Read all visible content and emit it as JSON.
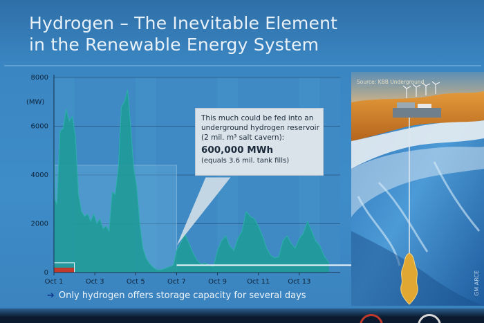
{
  "slide": {
    "title_line1": "Hydrogen – The Inevitable Element",
    "title_line2": "in the Renewable Energy System",
    "footer_text": "Only hydrogen offers storage capacity for several days",
    "footer_arrow": "➔"
  },
  "callout": {
    "line1": "This much could be fed into an",
    "line2": "underground hydrogen reservoir",
    "line3": "(2 mil. m³ salt cavern):",
    "value": "600,000 MWh",
    "note": "(equals 3.6 mil. tank fills)"
  },
  "photo": {
    "source": "Source: KBB Underground",
    "credit": "GM ARCE"
  },
  "colors": {
    "background": "#3e8cc8",
    "area_fill": "#1f9a98",
    "area_fill_light": "#2bb0aa",
    "stored_box": "#6fb4de",
    "red_bar": "#c0392b",
    "callout_bg": "#dbe3ea"
  },
  "chart_data": {
    "type": "area",
    "ylabel": "(MW)",
    "ylim": [
      0,
      8000
    ],
    "y_ticks": [
      "0",
      "2000",
      "4000",
      "6000",
      "8000"
    ],
    "y_tick_values": [
      0,
      2000,
      4000,
      6000,
      8000
    ],
    "xlim": [
      1,
      15
    ],
    "x_ticks": [
      "Oct 1",
      "Oct 3",
      "Oct 5",
      "Oct 7",
      "Oct 9",
      "Oct 11",
      "Oct 13"
    ],
    "x_tick_values": [
      1,
      3,
      5,
      7,
      9,
      11,
      13
    ],
    "grid": true,
    "series": [
      {
        "x": [
          1,
          1.05,
          1.15,
          1.3,
          1.45,
          1.6,
          1.75,
          1.9,
          2.05,
          2.2,
          2.35,
          2.5,
          2.65,
          2.8,
          2.95,
          3.1,
          3.25,
          3.4,
          3.55,
          3.7,
          3.85,
          4.0,
          4.15,
          4.3,
          4.45,
          4.6,
          4.75,
          4.9,
          5.05,
          5.2,
          5.35,
          5.5,
          5.65,
          5.8,
          5.95,
          6.1,
          6.25,
          6.4,
          6.55,
          6.7,
          6.85,
          7.0,
          7.2,
          7.4,
          7.6,
          7.8,
          8.0,
          8.2,
          8.4,
          8.6,
          8.8,
          9.0,
          9.2,
          9.4,
          9.6,
          9.8,
          10.0,
          10.2,
          10.4,
          10.6,
          10.8,
          11.0,
          11.2,
          11.4,
          11.6,
          11.8,
          12.0,
          12.2,
          12.4,
          12.6,
          12.8,
          13.0,
          13.2,
          13.4,
          13.6,
          13.8,
          14.0,
          14.2,
          14.45
        ],
        "y": [
          5400,
          3000,
          2800,
          5800,
          5900,
          6700,
          6200,
          6400,
          5600,
          3200,
          2500,
          2300,
          2400,
          2100,
          2400,
          2000,
          2200,
          1800,
          1900,
          1700,
          3300,
          3200,
          4300,
          6800,
          7000,
          7500,
          6000,
          4300,
          3500,
          2000,
          1000,
          600,
          400,
          250,
          150,
          100,
          120,
          150,
          200,
          250,
          300,
          900,
          1200,
          1600,
          1200,
          800,
          500,
          350,
          400,
          300,
          250,
          900,
          1300,
          1500,
          1100,
          900,
          1400,
          1700,
          2500,
          2300,
          2200,
          1900,
          1500,
          1000,
          700,
          600,
          650,
          1300,
          1500,
          1200,
          1000,
          1400,
          1600,
          2100,
          1700,
          1300,
          1100,
          700,
          400
        ]
      }
    ],
    "annotations": [
      {
        "kind": "stored_box",
        "x0": 1.0,
        "x1": 7.0,
        "y0": 0,
        "y1": 4400
      },
      {
        "kind": "red_bar",
        "x0": 1.0,
        "x1": 2.0,
        "y0": 0,
        "y1": 200
      },
      {
        "kind": "white_box",
        "x0": 1.0,
        "x1": 2.0,
        "y0": 0,
        "y1": 400
      },
      {
        "kind": "arrow",
        "x0": 7.0,
        "x1": 15.0,
        "y": 300
      }
    ]
  }
}
